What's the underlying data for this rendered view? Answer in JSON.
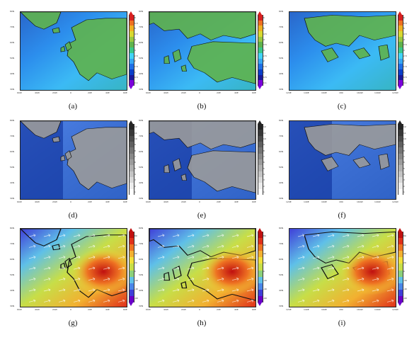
{
  "figure": {
    "panels": [
      {
        "id": "a",
        "label": "(a)",
        "field": "temperature",
        "region": "europe",
        "ylabels": [
          "80N",
          "70N",
          "60N",
          "50N",
          "40N",
          "30N"
        ],
        "xlabels": [
          "60W",
          "40W",
          "20W",
          "0",
          "20E",
          "40E",
          "60E"
        ],
        "cbar": [
          "0.1",
          "0.5",
          "1",
          "1.5",
          "2",
          "2.5",
          "3",
          "3.5",
          "4",
          "4.5",
          "5",
          "5.5",
          "6"
        ]
      },
      {
        "id": "b",
        "label": "(b)",
        "field": "temperature",
        "region": "europe-zoom",
        "ylabels": [
          "80N",
          "70N",
          "60N",
          "50N",
          "40N",
          "30N"
        ],
        "xlabels": [
          "60W",
          "40W",
          "20W",
          "0",
          "20E",
          "40E",
          "60E"
        ],
        "cbar": [
          "0.1",
          "0.5",
          "1",
          "1.5",
          "2",
          "2.5",
          "3",
          "3.5",
          "4",
          "4.5",
          "5",
          "5.5",
          "6"
        ]
      },
      {
        "id": "c",
        "label": "(c)",
        "field": "temperature",
        "region": "pacific",
        "ylabels": [
          "80N",
          "70N",
          "60N",
          "50N",
          "40N",
          "30N"
        ],
        "xlabels": [
          "120E",
          "140E",
          "160E",
          "180",
          "160W",
          "140W",
          "120W"
        ],
        "cbar": [
          "0.1",
          "0.5",
          "1",
          "1.5",
          "2",
          "2.5",
          "3",
          "3.5",
          "4",
          "4.5",
          "5",
          "5.5",
          "6"
        ]
      },
      {
        "id": "d",
        "label": "(d)",
        "field": "gray",
        "region": "europe",
        "ylabels": [
          "80N",
          "70N",
          "60N",
          "50N",
          "40N",
          "30N"
        ],
        "xlabels": [
          "60W",
          "40W",
          "20W",
          "0",
          "20E",
          "40E",
          "60E"
        ],
        "cbar": [
          "1",
          "2",
          "3",
          "4",
          "5",
          "6",
          "7",
          "8",
          "9",
          "10",
          "11",
          "12"
        ]
      },
      {
        "id": "e",
        "label": "(e)",
        "field": "gray",
        "region": "europe-zoom",
        "ylabels": [
          "80N",
          "70N",
          "60N",
          "50N",
          "40N",
          "30N"
        ],
        "xlabels": [
          "60W",
          "40W",
          "20W",
          "0",
          "20E",
          "40E",
          "60E"
        ],
        "cbar": [
          "1",
          "2",
          "3",
          "4",
          "5",
          "6",
          "7",
          "8",
          "9",
          "10",
          "11",
          "12"
        ]
      },
      {
        "id": "f",
        "label": "(f)",
        "field": "gray",
        "region": "pacific",
        "ylabels": [
          "80N",
          "70N",
          "60N",
          "50N",
          "40N",
          "30N"
        ],
        "xlabels": [
          "120E",
          "140E",
          "160E",
          "180",
          "160W",
          "140W",
          "120W"
        ],
        "cbar": [
          "1",
          "2",
          "3",
          "4",
          "5",
          "6",
          "7",
          "8",
          "9",
          "10",
          "11",
          "12"
        ]
      },
      {
        "id": "g",
        "label": "(g)",
        "field": "anomaly",
        "region": "europe",
        "ylabels": [
          "80N",
          "70N",
          "60N",
          "50N",
          "40N",
          "30N"
        ],
        "xlabels": [
          "60W",
          "40W",
          "20W",
          "0",
          "20E",
          "40E",
          "60E"
        ],
        "cbar": [
          "-60",
          "-40",
          "-20",
          "0",
          "20",
          "40",
          "60",
          "80"
        ]
      },
      {
        "id": "h",
        "label": "(h)",
        "field": "anomaly",
        "region": "europe-zoom",
        "ylabels": [
          "80N",
          "70N",
          "60N",
          "50N",
          "40N",
          "30N"
        ],
        "xlabels": [
          "60W",
          "40W",
          "20W",
          "0",
          "20E",
          "40E",
          "60E"
        ],
        "cbar": [
          "-60",
          "-40",
          "-20",
          "0",
          "20",
          "40",
          "60",
          "80"
        ]
      },
      {
        "id": "i",
        "label": "(i)",
        "field": "anomaly",
        "region": "pacific",
        "ylabels": [
          "80N",
          "70N",
          "60N",
          "50N",
          "40N",
          "30N"
        ],
        "xlabels": [
          "120E",
          "140E",
          "160E",
          "180",
          "160W",
          "140W",
          "120W"
        ],
        "cbar": [
          "-60",
          "-40",
          "-20",
          "0",
          "20",
          "40",
          "60",
          "80"
        ]
      }
    ],
    "palettes": {
      "temperature": [
        "#7b00d9",
        "#1a1a9a",
        "#0a3ec8",
        "#1f6fe5",
        "#36a6f2",
        "#42d3f7",
        "#39c78a",
        "#5fb34d",
        "#9ac840",
        "#d8d830",
        "#f0b020",
        "#ee7020",
        "#d82020"
      ],
      "gray": [
        "#ffffff",
        "#ececec",
        "#d8d8d8",
        "#c4c4c4",
        "#b0b0b0",
        "#9c9c9c",
        "#888888",
        "#747474",
        "#606060",
        "#4c4c4c",
        "#383838",
        "#242424"
      ],
      "anomaly": [
        "#6a00c8",
        "#3f3fd8",
        "#4a86e8",
        "#5fc0e8",
        "#8bd07a",
        "#c7de48",
        "#f0e03a",
        "#f2b030",
        "#ee7222",
        "#e0301a",
        "#c01010"
      ]
    }
  }
}
